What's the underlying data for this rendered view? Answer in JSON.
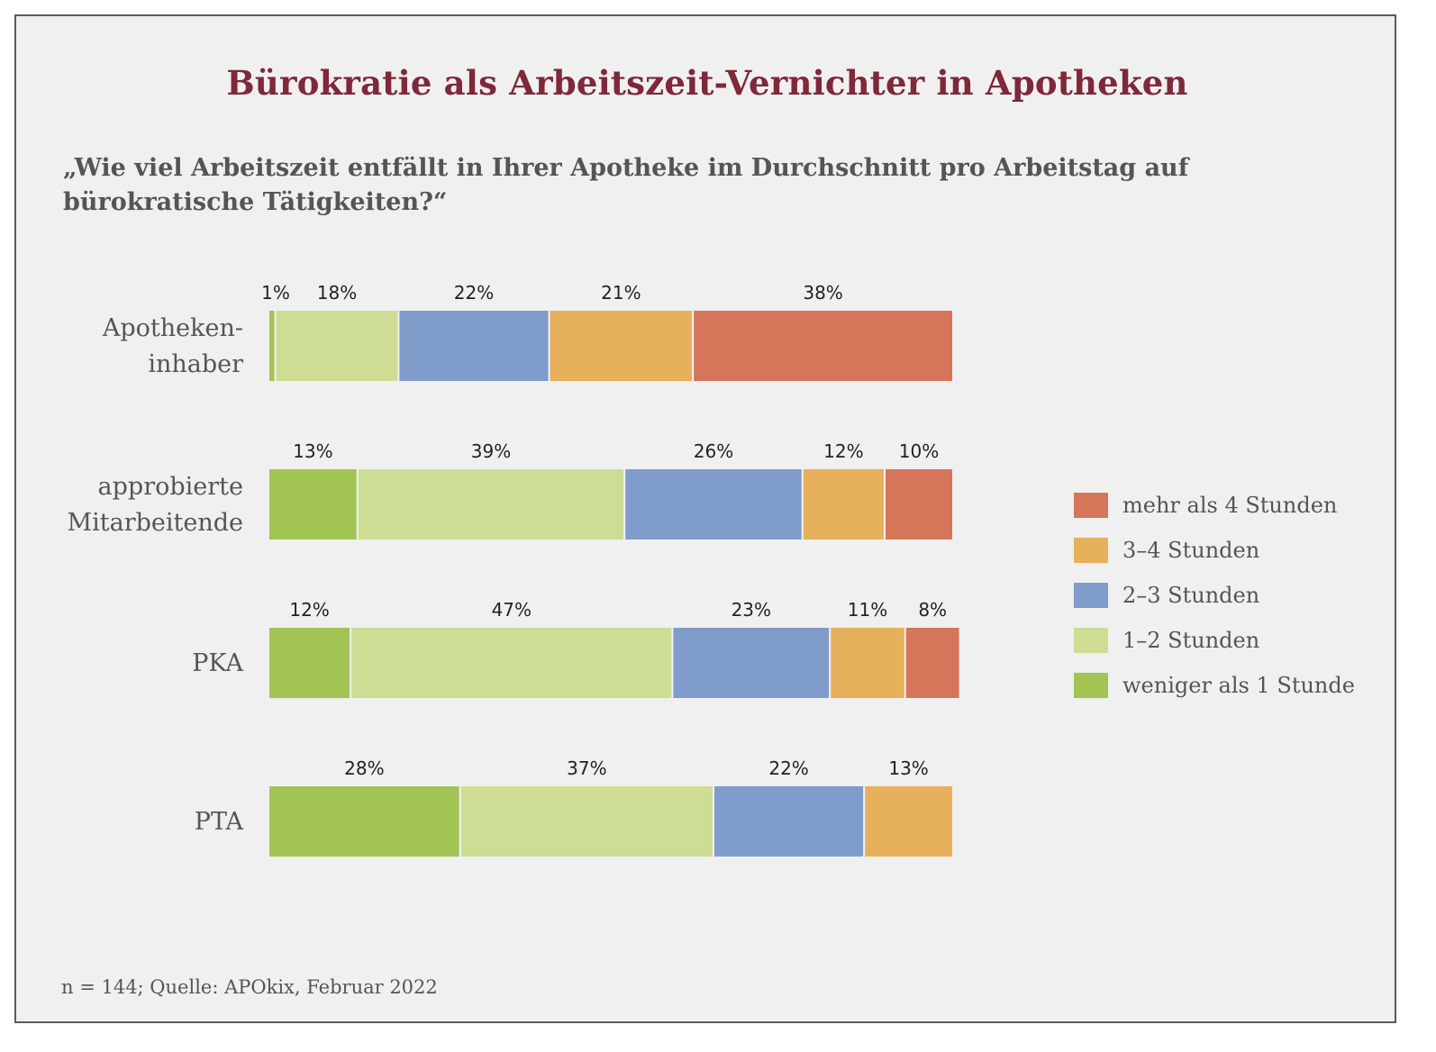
{
  "title": "Bürokratie als Arbeitszeit-Vernichter in Apotheken",
  "question": "„Wie viel Arbeitszeit entfällt in Ihrer Apotheke im Durchschnitt pro Arbeitstag auf bürokratische Tätigkeiten?“",
  "source": "n = 144; Quelle: APOkix, Februar 2022",
  "chart_data": {
    "type": "bar",
    "orientation": "horizontal",
    "stacked": true,
    "categories": [
      [
        "Apotheken-",
        "inhaber"
      ],
      [
        "approbierte",
        "Mitarbeitende"
      ],
      [
        "PKA"
      ],
      [
        "PTA"
      ]
    ],
    "series": [
      {
        "name": "weniger als 1 Stunde",
        "color": "#a2c454",
        "values": [
          1,
          13,
          12,
          28
        ],
        "labels": [
          "1%",
          "13%",
          "12%",
          "28%"
        ]
      },
      {
        "name": "1–2 Stunden",
        "color": "#cddd94",
        "values": [
          18,
          39,
          47,
          37
        ],
        "labels": [
          "18%",
          "39%",
          "47%",
          "37%"
        ]
      },
      {
        "name": "2–3 Stunden",
        "color": "#809ccb",
        "values": [
          22,
          26,
          23,
          22
        ],
        "labels": [
          "22%",
          "26%",
          "23%",
          "22%"
        ]
      },
      {
        "name": "3–4 Stunden",
        "color": "#e7b05a",
        "values": [
          21,
          12,
          11,
          13
        ],
        "labels": [
          "21%",
          "12%",
          "11%",
          "13%"
        ]
      },
      {
        "name": "mehr als 4 Stunden",
        "color": "#d5755a",
        "values": [
          38,
          10,
          8,
          0
        ],
        "labels": [
          "38%",
          "10%",
          "8%",
          ""
        ]
      }
    ],
    "xlim": [
      0,
      100
    ],
    "legend_position": "right",
    "legend_order": [
      "mehr als 4 Stunden",
      "3–4 Stunden",
      "2–3 Stunden",
      "1–2 Stunden",
      "weniger als 1 Stunde"
    ],
    "grid": false
  }
}
